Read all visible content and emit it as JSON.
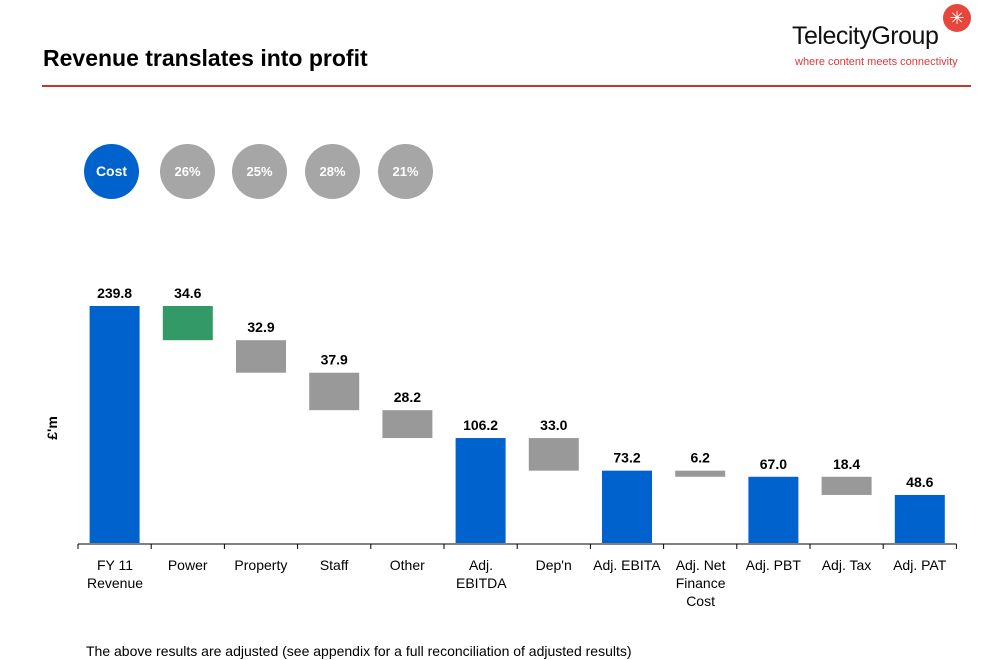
{
  "header": {
    "title": "Revenue translates into profit",
    "logo": "TelecityGroup",
    "tagline": "where content meets connectivity"
  },
  "cost_circles": {
    "label": "Cost",
    "values": [
      "26%",
      "25%",
      "28%",
      "21%"
    ]
  },
  "footnote": "The above results are adjusted (see appendix for a full reconciliation of adjusted results)",
  "colors": {
    "total": "#0062cc",
    "positive_step": "#339966",
    "negative_step": "#999999",
    "accent": "#e8453c"
  },
  "chart_data": {
    "type": "waterfall",
    "ylabel": "£'m",
    "ylim": [
      0,
      240
    ],
    "grid": false,
    "categories": [
      "FY 11 Revenue",
      "Power",
      "Property",
      "Staff",
      "Other",
      "Adj. EBITDA",
      "Dep'n",
      "Adj. EBITA",
      "Adj. Net Finance Cost",
      "Adj. PBT",
      "Adj. Tax",
      "Adj. PAT"
    ],
    "values": [
      239.8,
      34.6,
      32.9,
      37.9,
      28.2,
      106.2,
      33.0,
      73.2,
      6.2,
      67.0,
      18.4,
      48.6
    ],
    "labels": [
      "239.8",
      "34.6",
      "32.9",
      "37.9",
      "28.2",
      "106.2",
      "33.0",
      "73.2",
      "6.2",
      "67.0",
      "18.4",
      "48.6"
    ],
    "kinds": [
      "total",
      "step-green",
      "step",
      "step",
      "step",
      "total",
      "step",
      "total",
      "step",
      "total",
      "step",
      "total"
    ]
  }
}
